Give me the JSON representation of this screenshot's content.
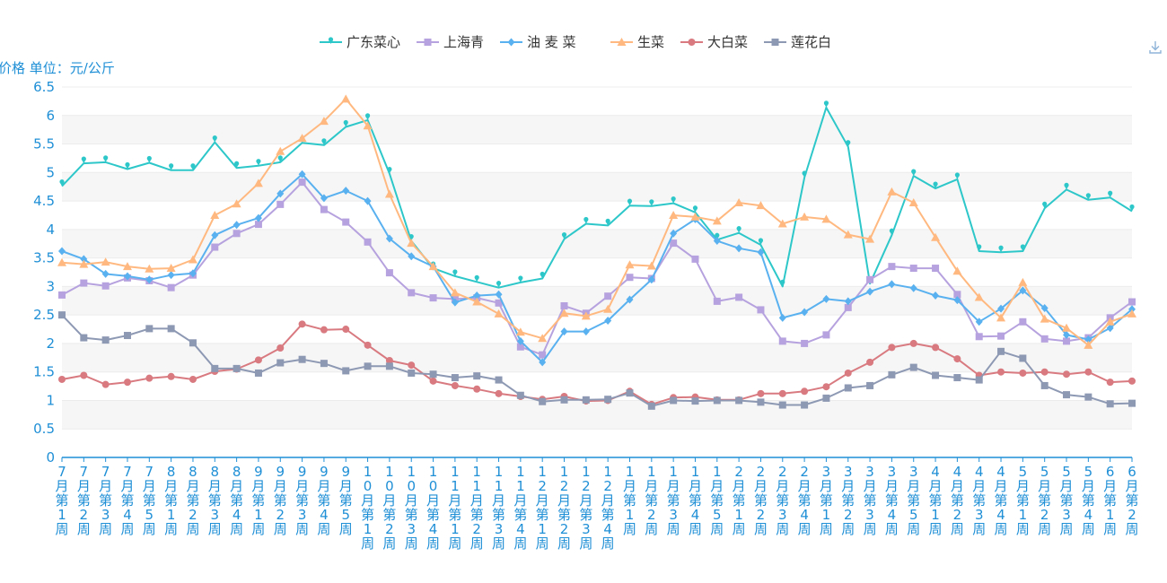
{
  "chart_data": {
    "type": "line",
    "ylabel": "价格 单位：元/公斤",
    "ylim": [
      0,
      6.5
    ],
    "yticks": [
      "0",
      "0.5",
      "1",
      "1.5",
      "2",
      "2.5",
      "3",
      "3.5",
      "4",
      "4.5",
      "5",
      "5.5",
      "6",
      "6.5"
    ],
    "grid": true,
    "legend_position": "top-center",
    "categories": [
      "7月第1周",
      "7月第2周",
      "7月第3周",
      "7月第4周",
      "7月第5周",
      "8月第1周",
      "8月第2周",
      "8月第3周",
      "8月第4周",
      "9月第1周",
      "9月第2周",
      "9月第3周",
      "9月第4周",
      "9月第5周",
      "10月第1周",
      "10月第2周",
      "10月第3周",
      "10月第4周",
      "11月第1周",
      "11月第2周",
      "11月第3周",
      "11月第4周",
      "12月第1周",
      "12月第2周",
      "12月第3周",
      "12月第4周",
      "1月第1周",
      "1月第2周",
      "1月第3周",
      "1月第4周",
      "1月第5周",
      "2月第1周",
      "2月第2周",
      "2月第3周",
      "2月第4周",
      "3月第1周",
      "3月第2周",
      "3月第3周",
      "3月第4周",
      "3月第5周",
      "4月第1周",
      "4月第2周",
      "4月第3周",
      "4月第4周",
      "5月第1周",
      "5月第2周",
      "5月第3周",
      "5月第4周",
      "6月第1周",
      "6月第2周"
    ],
    "series": [
      {
        "name": "广东菜心",
        "color": "#2ec7c9",
        "marker": "pin",
        "values": [
          4.76,
          5.16,
          5.18,
          5.06,
          5.17,
          5.04,
          5.04,
          5.53,
          5.08,
          5.12,
          5.18,
          5.52,
          5.48,
          5.8,
          5.92,
          4.98,
          3.8,
          3.32,
          3.18,
          3.08,
          2.98,
          3.07,
          3.14,
          3.83,
          4.1,
          4.07,
          4.42,
          4.41,
          4.46,
          4.3,
          3.82,
          3.94,
          3.73,
          3.0,
          4.91,
          6.14,
          5.45,
          3.05,
          3.9,
          4.94,
          4.72,
          4.88,
          3.62,
          3.6,
          3.62,
          4.37,
          4.7,
          4.52,
          4.56,
          4.32
        ]
      },
      {
        "name": "上海青",
        "color": "#b6a2de",
        "marker": "rect",
        "values": [
          2.85,
          3.06,
          3.01,
          3.15,
          3.1,
          2.98,
          3.2,
          3.69,
          3.93,
          4.09,
          4.44,
          4.83,
          4.35,
          4.13,
          3.78,
          3.24,
          2.89,
          2.8,
          2.78,
          2.8,
          2.71,
          1.94,
          1.8,
          2.66,
          2.53,
          2.83,
          3.16,
          3.14,
          3.76,
          3.48,
          2.74,
          2.81,
          2.59,
          2.04,
          2.0,
          2.15,
          2.63,
          3.12,
          3.35,
          3.32,
          3.32,
          2.86,
          2.12,
          2.13,
          2.38,
          2.08,
          2.04,
          2.1,
          2.45,
          2.73
        ]
      },
      {
        "name": "油 麦 菜",
        "color": "#5ab1ef",
        "marker": "diamond",
        "values": [
          3.62,
          3.48,
          3.22,
          3.18,
          3.12,
          3.2,
          3.23,
          3.9,
          4.08,
          4.2,
          4.63,
          4.97,
          4.55,
          4.68,
          4.5,
          3.84,
          3.53,
          3.35,
          2.72,
          2.84,
          2.86,
          2.04,
          1.67,
          2.21,
          2.21,
          2.4,
          2.77,
          3.12,
          3.93,
          4.18,
          3.8,
          3.67,
          3.6,
          2.45,
          2.55,
          2.78,
          2.74,
          2.91,
          3.04,
          2.97,
          2.84,
          2.76,
          2.38,
          2.61,
          2.93,
          2.62,
          2.15,
          2.07,
          2.27,
          2.6
        ]
      },
      {
        "name": "生菜",
        "color": "#ffb980",
        "marker": "triangle",
        "values": [
          3.42,
          3.39,
          3.43,
          3.35,
          3.31,
          3.32,
          3.47,
          4.25,
          4.45,
          4.81,
          5.37,
          5.6,
          5.9,
          6.29,
          5.82,
          4.62,
          3.76,
          3.35,
          2.89,
          2.73,
          2.52,
          2.2,
          2.09,
          2.53,
          2.48,
          2.6,
          3.38,
          3.36,
          4.25,
          4.22,
          4.15,
          4.47,
          4.42,
          4.1,
          4.22,
          4.18,
          3.91,
          3.83,
          4.66,
          4.47,
          3.86,
          3.27,
          2.81,
          2.45,
          3.07,
          2.43,
          2.27,
          1.97,
          2.38,
          2.52
        ]
      },
      {
        "name": "大白菜",
        "color": "#d87a80",
        "marker": "circle",
        "values": [
          1.37,
          1.44,
          1.28,
          1.32,
          1.39,
          1.42,
          1.37,
          1.51,
          1.55,
          1.71,
          1.92,
          2.34,
          2.24,
          2.25,
          1.97,
          1.7,
          1.62,
          1.34,
          1.26,
          1.2,
          1.12,
          1.07,
          1.02,
          1.07,
          0.99,
          1.0,
          1.16,
          0.93,
          1.05,
          1.06,
          1.01,
          1.01,
          1.12,
          1.12,
          1.16,
          1.24,
          1.48,
          1.67,
          1.93,
          2.0,
          1.93,
          1.73,
          1.44,
          1.5,
          1.48,
          1.5,
          1.46,
          1.5,
          1.32,
          1.34
        ]
      },
      {
        "name": "莲花白",
        "color": "#8d98b3",
        "marker": "rect",
        "values": [
          2.5,
          2.1,
          2.06,
          2.14,
          2.26,
          2.26,
          2.01,
          1.56,
          1.56,
          1.48,
          1.66,
          1.72,
          1.65,
          1.52,
          1.6,
          1.6,
          1.48,
          1.46,
          1.4,
          1.43,
          1.36,
          1.09,
          0.98,
          1.01,
          1.01,
          1.02,
          1.13,
          0.9,
          1.0,
          0.99,
          1.0,
          1.0,
          0.97,
          0.92,
          0.92,
          1.04,
          1.22,
          1.26,
          1.45,
          1.58,
          1.44,
          1.4,
          1.36,
          1.86,
          1.74,
          1.26,
          1.1,
          1.06,
          0.94,
          0.95
        ]
      }
    ]
  },
  "toolbar": {
    "download_icon": "download-icon"
  }
}
